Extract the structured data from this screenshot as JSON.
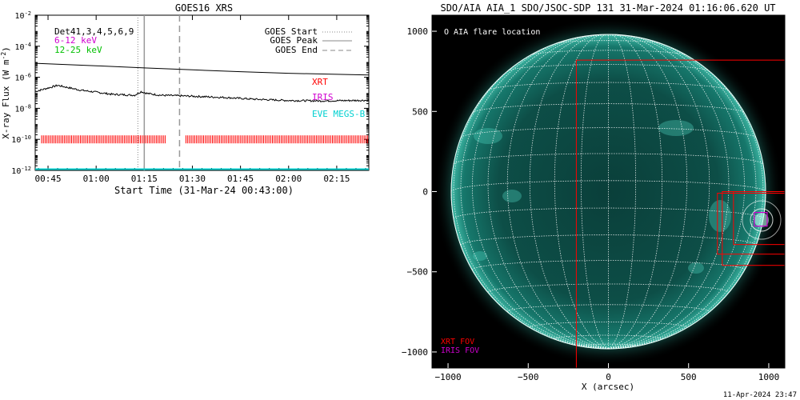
{
  "chart_data": [
    {
      "type": "line",
      "title": "GOES16 XRS",
      "xlabel": "Start Time (31-Mar-24 00:43:00)",
      "ylabel": "X-ray Flux (W m",
      "ylabel_exp": "-2",
      "ylabel_tail": ")",
      "y_scale": "log",
      "xlim": [
        "00:41",
        "02:25"
      ],
      "ylim": [
        1e-12,
        0.01
      ],
      "x_ticks": [
        "00:45",
        "01:00",
        "01:15",
        "01:30",
        "01:45",
        "02:00",
        "02:15"
      ],
      "x_tick_minutes": [
        45,
        60,
        75,
        90,
        105,
        120,
        135
      ],
      "y_tick_exponents": [
        "-12",
        "-10",
        "-8",
        "-6",
        "-4",
        "-2"
      ],
      "y_tick_base": "10",
      "legend_left": [
        {
          "label": "Det41,3,4,5,6,9",
          "color": "#000000"
        },
        {
          "label": "6-12 keV",
          "color": "#d000d0"
        },
        {
          "label": "12-25 keV",
          "color": "#00c000"
        }
      ],
      "legend_right": [
        {
          "label": "GOES Start",
          "style": "dotted"
        },
        {
          "label": "GOES Peak",
          "style": "solid"
        },
        {
          "label": "GOES End",
          "style": "dashed"
        }
      ],
      "instrument_labels": [
        {
          "label": "XRT",
          "color": "#ff0000"
        },
        {
          "label": "IRIS",
          "color": "#d000d0"
        },
        {
          "label": "EVE MEGS-B",
          "color": "#00d0d0"
        }
      ],
      "series": [
        {
          "name": "GOES long",
          "x": [
            41,
            60,
            75,
            90,
            105,
            120,
            145
          ],
          "y": [
            8e-06,
            5.5e-06,
            4e-06,
            3e-06,
            2.3e-06,
            1.8e-06,
            1.4e-06
          ]
        },
        {
          "name": "GOES short",
          "x": [
            41,
            44,
            48,
            55,
            65,
            72,
            74,
            76,
            80,
            90,
            100,
            110,
            120,
            130,
            145
          ],
          "y": [
            1.2e-07,
            1.8e-07,
            3e-07,
            1.5e-07,
            8e-08,
            7e-08,
            1.2e-07,
            9e-08,
            7e-08,
            6e-08,
            5e-08,
            3.8e-08,
            3.2e-08,
            3e-08,
            3.3e-08
          ]
        }
      ],
      "goes_start": "01:13",
      "goes_peak": "01:15",
      "goes_end": "01:26",
      "xrt_coverage": [
        [
          "00:43",
          "01:22"
        ],
        [
          "01:28",
          "02:25"
        ]
      ],
      "iris_coverage": [
        "00:43",
        "02:10"
      ],
      "eve_coverage": [
        "00:43",
        "02:25"
      ]
    },
    {
      "type": "image",
      "title": "SDO/AIA AIA_1 SDO/JSOC-SDP 131 31-Mar-2024 01:16:06.620 UT",
      "xlabel": "X (arcsec)",
      "x_ticks": [
        "−1000",
        "−500",
        "0",
        "500",
        "1000"
      ],
      "x_tick_values": [
        -1000,
        -500,
        0,
        500,
        1000
      ],
      "y_ticks": [
        "1000",
        "500",
        "0",
        "−500",
        "−1000"
      ],
      "y_tick_values": [
        1000,
        500,
        0,
        -500,
        -1000
      ],
      "xlim": [
        -1100,
        1100
      ],
      "ylim": [
        -1100,
        1100
      ],
      "solar_radius_arcsec": 980,
      "flare_label": "O AIA flare location",
      "flare_location": [
        950,
        -170
      ],
      "xrt_fov_label": "XRT FOV",
      "iris_fov_label": "IRIS FOV",
      "xrt_fovs": [
        [
          -200,
          -1100,
          1100,
          820
        ],
        [
          680,
          -390,
          1100,
          -10
        ],
        [
          710,
          -460,
          1100,
          0
        ],
        [
          780,
          -330,
          1100,
          0
        ]
      ],
      "iris_fov": [
        910,
        -215,
        990,
        -130
      ],
      "xrt_color": "#ff0000",
      "iris_color": "#d000d0"
    }
  ],
  "footer": {
    "timestamp": "11-Apr-2024 23:47"
  }
}
